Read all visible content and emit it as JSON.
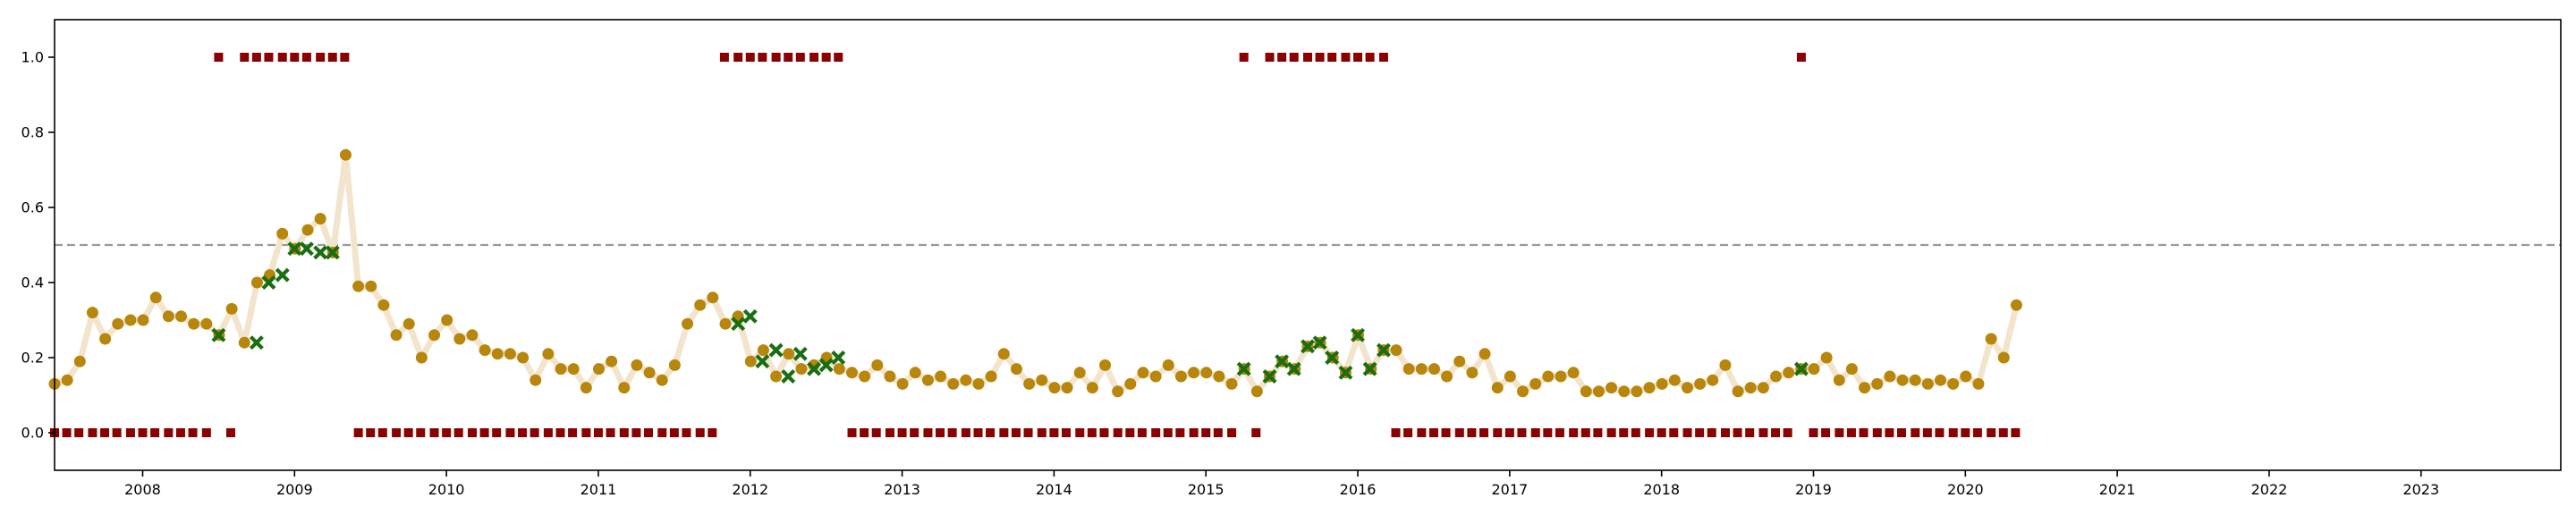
{
  "chart_data": {
    "type": "scatter",
    "title": "",
    "xlabel": "",
    "ylabel": "",
    "xlim": [
      2007.42,
      2023.92
    ],
    "ylim": [
      -0.1,
      1.1
    ],
    "grid": false,
    "legend": "none",
    "x_ticks": [
      "2008",
      "2009",
      "2010",
      "2011",
      "2012",
      "2013",
      "2014",
      "2015",
      "2016",
      "2017",
      "2018",
      "2019",
      "2020",
      "2021",
      "2022",
      "2023"
    ],
    "y_ticks": [
      "0.0",
      "0.2",
      "0.4",
      "0.6",
      "0.8",
      "1.0"
    ],
    "threshold": 0.5,
    "colors": {
      "line": "#f3e5cd",
      "point": "#b8860b",
      "cross": "#1a6e12",
      "square": "#8b0000",
      "threshold": "#999999"
    },
    "series": [
      {
        "kind": "monthly-score",
        "x_start": 2007.42,
        "step": 0.08333,
        "values": [
          0.13,
          0.14,
          0.19,
          0.32,
          0.25,
          0.29,
          0.3,
          0.3,
          0.36,
          0.31,
          0.31,
          0.29,
          0.29,
          0.26,
          0.33,
          0.24,
          0.4,
          0.42,
          0.53,
          0.49,
          0.54,
          0.57,
          0.48,
          0.74,
          0.39,
          0.39,
          0.34,
          0.26,
          0.29,
          0.2,
          0.26,
          0.3,
          0.25,
          0.26,
          0.22,
          0.21,
          0.21,
          0.2,
          0.14,
          0.21,
          0.17,
          0.17,
          0.12,
          0.17,
          0.19,
          0.12,
          0.18,
          0.16,
          0.14,
          0.18,
          0.29,
          0.34,
          0.36,
          0.29,
          0.31,
          0.19,
          0.22,
          0.15,
          0.21,
          0.17,
          0.18,
          0.2,
          0.17,
          0.16,
          0.15,
          0.18,
          0.15,
          0.13,
          0.16,
          0.14,
          0.15,
          0.13,
          0.14,
          0.13,
          0.15,
          0.21,
          0.17,
          0.13,
          0.14,
          0.12,
          0.12,
          0.16,
          0.12,
          0.18,
          0.11,
          0.13,
          0.16,
          0.15,
          0.18,
          0.15,
          0.16,
          0.16,
          0.15,
          0.13,
          0.17,
          0.11,
          0.15,
          0.19,
          0.17,
          0.23,
          0.24,
          0.2,
          0.16,
          0.26,
          0.17,
          0.22,
          0.22,
          0.17,
          0.17,
          0.17,
          0.15,
          0.19,
          0.16,
          0.21,
          0.12,
          0.15,
          0.11,
          0.13,
          0.15,
          0.15,
          0.16,
          0.11,
          0.11,
          0.12,
          0.11,
          0.11,
          0.12,
          0.13,
          0.14,
          0.12,
          0.13,
          0.14,
          0.18,
          0.11,
          0.12,
          0.12,
          0.15,
          0.16,
          0.17,
          0.17,
          0.2,
          0.14,
          0.17,
          0.12,
          0.13,
          0.15,
          0.14,
          0.14,
          0.13,
          0.14,
          0.13,
          0.15,
          0.13,
          0.25,
          0.2,
          0.34
        ]
      },
      {
        "kind": "flagged-months",
        "x": [
          2008.5,
          2008.75,
          2008.83,
          2008.92,
          2009.0,
          2009.08,
          2009.17,
          2009.25,
          2011.92,
          2012.0,
          2012.08,
          2012.17,
          2012.25,
          2012.33,
          2012.42,
          2012.5,
          2012.58,
          2015.25,
          2015.42,
          2015.5,
          2015.58,
          2015.67,
          2015.75,
          2015.83,
          2015.92,
          2016.0,
          2016.08,
          2016.17,
          2018.92
        ],
        "y": [
          0.26,
          0.24,
          0.4,
          0.42,
          0.49,
          0.49,
          0.48,
          0.48,
          0.29,
          0.31,
          0.19,
          0.22,
          0.15,
          0.21,
          0.17,
          0.18,
          0.2,
          0.17,
          0.15,
          0.19,
          0.17,
          0.23,
          0.24,
          0.2,
          0.16,
          0.26,
          0.17,
          0.22,
          0.17
        ]
      },
      {
        "kind": "binary-indicator",
        "points": [
          {
            "x": 2007.42,
            "y": 0
          },
          {
            "x": 2007.5,
            "y": 0
          },
          {
            "x": 2007.58,
            "y": 0
          },
          {
            "x": 2007.67,
            "y": 0
          },
          {
            "x": 2007.75,
            "y": 0
          },
          {
            "x": 2007.83,
            "y": 0
          },
          {
            "x": 2007.92,
            "y": 0
          },
          {
            "x": 2008.0,
            "y": 0
          },
          {
            "x": 2008.08,
            "y": 0
          },
          {
            "x": 2008.17,
            "y": 0
          },
          {
            "x": 2008.25,
            "y": 0
          },
          {
            "x": 2008.33,
            "y": 0
          },
          {
            "x": 2008.42,
            "y": 0
          },
          {
            "x": 2008.5,
            "y": 1
          },
          {
            "x": 2008.58,
            "y": 0
          },
          {
            "x": 2008.67,
            "y": 1
          },
          {
            "x": 2008.75,
            "y": 1
          },
          {
            "x": 2008.83,
            "y": 1
          },
          {
            "x": 2008.92,
            "y": 1
          },
          {
            "x": 2009.0,
            "y": 1
          },
          {
            "x": 2009.08,
            "y": 1
          },
          {
            "x": 2009.17,
            "y": 1
          },
          {
            "x": 2009.25,
            "y": 1
          },
          {
            "x": 2009.33,
            "y": 1
          },
          {
            "x": 2009.42,
            "y": 0
          },
          {
            "x": 2009.5,
            "y": 0
          },
          {
            "x": 2009.58,
            "y": 0
          },
          {
            "x": 2009.67,
            "y": 0
          },
          {
            "x": 2009.75,
            "y": 0
          },
          {
            "x": 2009.83,
            "y": 0
          },
          {
            "x": 2009.92,
            "y": 0
          },
          {
            "x": 2010.0,
            "y": 0
          },
          {
            "x": 2010.08,
            "y": 0
          },
          {
            "x": 2010.17,
            "y": 0
          },
          {
            "x": 2010.25,
            "y": 0
          },
          {
            "x": 2010.33,
            "y": 0
          },
          {
            "x": 2010.42,
            "y": 0
          },
          {
            "x": 2010.5,
            "y": 0
          },
          {
            "x": 2010.58,
            "y": 0
          },
          {
            "x": 2010.67,
            "y": 0
          },
          {
            "x": 2010.75,
            "y": 0
          },
          {
            "x": 2010.83,
            "y": 0
          },
          {
            "x": 2010.92,
            "y": 0
          },
          {
            "x": 2011.0,
            "y": 0
          },
          {
            "x": 2011.08,
            "y": 0
          },
          {
            "x": 2011.17,
            "y": 0
          },
          {
            "x": 2011.25,
            "y": 0
          },
          {
            "x": 2011.33,
            "y": 0
          },
          {
            "x": 2011.42,
            "y": 0
          },
          {
            "x": 2011.5,
            "y": 0
          },
          {
            "x": 2011.58,
            "y": 0
          },
          {
            "x": 2011.67,
            "y": 0
          },
          {
            "x": 2011.75,
            "y": 0
          },
          {
            "x": 2011.83,
            "y": 1
          },
          {
            "x": 2011.92,
            "y": 1
          },
          {
            "x": 2012.0,
            "y": 1
          },
          {
            "x": 2012.08,
            "y": 1
          },
          {
            "x": 2012.17,
            "y": 1
          },
          {
            "x": 2012.25,
            "y": 1
          },
          {
            "x": 2012.33,
            "y": 1
          },
          {
            "x": 2012.42,
            "y": 1
          },
          {
            "x": 2012.5,
            "y": 1
          },
          {
            "x": 2012.58,
            "y": 1
          },
          {
            "x": 2012.67,
            "y": 0
          },
          {
            "x": 2012.75,
            "y": 0
          },
          {
            "x": 2012.83,
            "y": 0
          },
          {
            "x": 2012.92,
            "y": 0
          },
          {
            "x": 2013.0,
            "y": 0
          },
          {
            "x": 2013.08,
            "y": 0
          },
          {
            "x": 2013.17,
            "y": 0
          },
          {
            "x": 2013.25,
            "y": 0
          },
          {
            "x": 2013.33,
            "y": 0
          },
          {
            "x": 2013.42,
            "y": 0
          },
          {
            "x": 2013.5,
            "y": 0
          },
          {
            "x": 2013.58,
            "y": 0
          },
          {
            "x": 2013.67,
            "y": 0
          },
          {
            "x": 2013.75,
            "y": 0
          },
          {
            "x": 2013.83,
            "y": 0
          },
          {
            "x": 2013.92,
            "y": 0
          },
          {
            "x": 2014.0,
            "y": 0
          },
          {
            "x": 2014.08,
            "y": 0
          },
          {
            "x": 2014.17,
            "y": 0
          },
          {
            "x": 2014.25,
            "y": 0
          },
          {
            "x": 2014.33,
            "y": 0
          },
          {
            "x": 2014.42,
            "y": 0
          },
          {
            "x": 2014.5,
            "y": 0
          },
          {
            "x": 2014.58,
            "y": 0
          },
          {
            "x": 2014.67,
            "y": 0
          },
          {
            "x": 2014.75,
            "y": 0
          },
          {
            "x": 2014.83,
            "y": 0
          },
          {
            "x": 2014.92,
            "y": 0
          },
          {
            "x": 2015.0,
            "y": 0
          },
          {
            "x": 2015.08,
            "y": 0
          },
          {
            "x": 2015.17,
            "y": 0
          },
          {
            "x": 2015.25,
            "y": 1
          },
          {
            "x": 2015.33,
            "y": 0
          },
          {
            "x": 2015.42,
            "y": 1
          },
          {
            "x": 2015.5,
            "y": 1
          },
          {
            "x": 2015.58,
            "y": 1
          },
          {
            "x": 2015.67,
            "y": 1
          },
          {
            "x": 2015.75,
            "y": 1
          },
          {
            "x": 2015.83,
            "y": 1
          },
          {
            "x": 2015.92,
            "y": 1
          },
          {
            "x": 2016.0,
            "y": 1
          },
          {
            "x": 2016.08,
            "y": 1
          },
          {
            "x": 2016.17,
            "y": 1
          },
          {
            "x": 2016.25,
            "y": 0
          },
          {
            "x": 2016.33,
            "y": 0
          },
          {
            "x": 2016.42,
            "y": 0
          },
          {
            "x": 2016.5,
            "y": 0
          },
          {
            "x": 2016.58,
            "y": 0
          },
          {
            "x": 2016.67,
            "y": 0
          },
          {
            "x": 2016.75,
            "y": 0
          },
          {
            "x": 2016.83,
            "y": 0
          },
          {
            "x": 2016.92,
            "y": 0
          },
          {
            "x": 2017.0,
            "y": 0
          },
          {
            "x": 2017.08,
            "y": 0
          },
          {
            "x": 2017.17,
            "y": 0
          },
          {
            "x": 2017.25,
            "y": 0
          },
          {
            "x": 2017.33,
            "y": 0
          },
          {
            "x": 2017.42,
            "y": 0
          },
          {
            "x": 2017.5,
            "y": 0
          },
          {
            "x": 2017.58,
            "y": 0
          },
          {
            "x": 2017.67,
            "y": 0
          },
          {
            "x": 2017.75,
            "y": 0
          },
          {
            "x": 2017.83,
            "y": 0
          },
          {
            "x": 2017.92,
            "y": 0
          },
          {
            "x": 2018.0,
            "y": 0
          },
          {
            "x": 2018.08,
            "y": 0
          },
          {
            "x": 2018.17,
            "y": 0
          },
          {
            "x": 2018.25,
            "y": 0
          },
          {
            "x": 2018.33,
            "y": 0
          },
          {
            "x": 2018.42,
            "y": 0
          },
          {
            "x": 2018.5,
            "y": 0
          },
          {
            "x": 2018.58,
            "y": 0
          },
          {
            "x": 2018.67,
            "y": 0
          },
          {
            "x": 2018.75,
            "y": 0
          },
          {
            "x": 2018.83,
            "y": 0
          },
          {
            "x": 2018.92,
            "y": 1
          },
          {
            "x": 2019.0,
            "y": 0
          },
          {
            "x": 2019.08,
            "y": 0
          },
          {
            "x": 2019.17,
            "y": 0
          },
          {
            "x": 2019.25,
            "y": 0
          },
          {
            "x": 2019.33,
            "y": 0
          },
          {
            "x": 2019.42,
            "y": 0
          },
          {
            "x": 2019.5,
            "y": 0
          },
          {
            "x": 2019.58,
            "y": 0
          },
          {
            "x": 2019.67,
            "y": 0
          },
          {
            "x": 2019.75,
            "y": 0
          },
          {
            "x": 2019.83,
            "y": 0
          },
          {
            "x": 2019.92,
            "y": 0
          },
          {
            "x": 2020.0,
            "y": 0
          },
          {
            "x": 2020.08,
            "y": 0
          },
          {
            "x": 2020.17,
            "y": 0
          },
          {
            "x": 2020.25,
            "y": 0
          },
          {
            "x": 2020.33,
            "y": 0
          }
        ]
      }
    ]
  }
}
